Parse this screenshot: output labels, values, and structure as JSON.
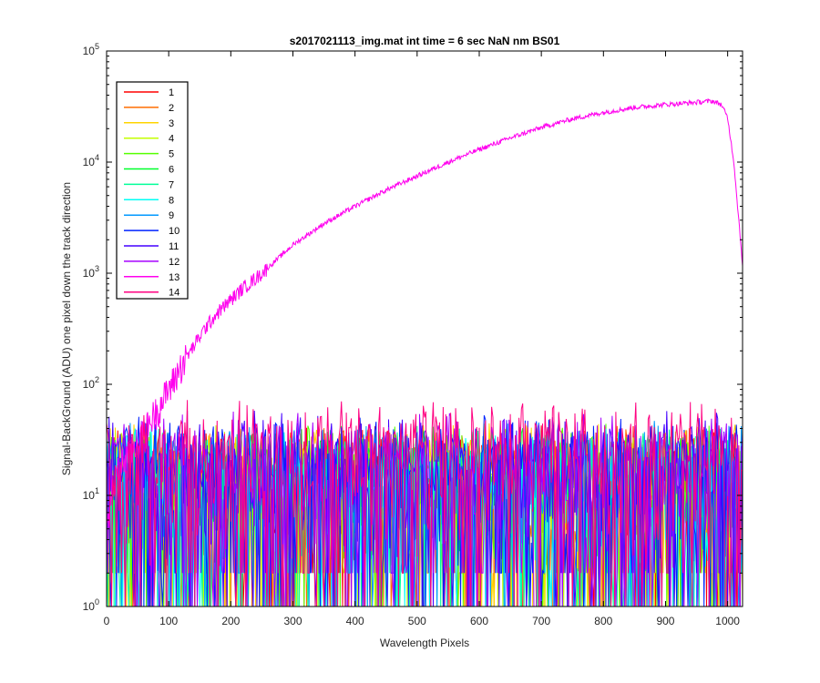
{
  "chart_data": {
    "type": "line",
    "title": "s2017021113_img.mat int time = 6 sec  NaN nm BS01",
    "xlabel": "Wavelength Pixels",
    "ylabel": "Signal-BackGround (ADU) one pixel down the track direction",
    "xlim": [
      0,
      1024
    ],
    "ylim": [
      1,
      100000
    ],
    "yscale": "log",
    "grid": false,
    "legend_position": "top-left",
    "xticks": [
      0,
      100,
      200,
      300,
      400,
      500,
      600,
      700,
      800,
      900,
      1000
    ],
    "xtick_labels": [
      "0",
      "100",
      "200",
      "300",
      "400",
      "500",
      "600",
      "700",
      "800",
      "900",
      "1000"
    ],
    "yticks": [
      1,
      10,
      100,
      1000,
      10000,
      100000
    ],
    "ytick_labels": [
      {
        "base": "10",
        "exp": "0"
      },
      {
        "base": "10",
        "exp": "1"
      },
      {
        "base": "10",
        "exp": "2"
      },
      {
        "base": "10",
        "exp": "3"
      },
      {
        "base": "10",
        "exp": "4"
      },
      {
        "base": "10",
        "exp": "5"
      }
    ],
    "series": [
      {
        "name": "1",
        "color": "#ff0000",
        "noise_max": 45
      },
      {
        "name": "2",
        "color": "#ff6e00",
        "noise_max": 45
      },
      {
        "name": "3",
        "color": "#ffd400",
        "noise_max": 48
      },
      {
        "name": "4",
        "color": "#c4ff00",
        "noise_max": 45
      },
      {
        "name": "5",
        "color": "#55ff00",
        "noise_max": 45
      },
      {
        "name": "6",
        "color": "#00ff2b",
        "noise_max": 45
      },
      {
        "name": "7",
        "color": "#00ff99",
        "noise_max": 45
      },
      {
        "name": "8",
        "color": "#00fff5",
        "noise_max": 45
      },
      {
        "name": "9",
        "color": "#0099ff",
        "noise_max": 50
      },
      {
        "name": "10",
        "color": "#0022ff",
        "noise_max": 55
      },
      {
        "name": "11",
        "color": "#4400ff",
        "noise_max": 60
      },
      {
        "name": "12",
        "color": "#a600ff",
        "noise_max": 60
      },
      {
        "name": "13",
        "color": "#ff00ee",
        "signal_points": [
          [
            0,
            5
          ],
          [
            10,
            12
          ],
          [
            20,
            18
          ],
          [
            30,
            22
          ],
          [
            40,
            25
          ],
          [
            50,
            30
          ],
          [
            60,
            36
          ],
          [
            70,
            48
          ],
          [
            80,
            58
          ],
          [
            90,
            72
          ],
          [
            100,
            92
          ],
          [
            110,
            115
          ],
          [
            120,
            150
          ],
          [
            140,
            220
          ],
          [
            160,
            330
          ],
          [
            180,
            450
          ],
          [
            200,
            580
          ],
          [
            220,
            740
          ],
          [
            250,
            1000
          ],
          [
            300,
            1800
          ],
          [
            350,
            2800
          ],
          [
            400,
            4000
          ],
          [
            450,
            5600
          ],
          [
            500,
            7500
          ],
          [
            550,
            10000
          ],
          [
            600,
            13000
          ],
          [
            650,
            16500
          ],
          [
            700,
            20500
          ],
          [
            750,
            24500
          ],
          [
            800,
            28000
          ],
          [
            850,
            31000
          ],
          [
            900,
            33000
          ],
          [
            950,
            34500
          ],
          [
            975,
            35500
          ],
          [
            990,
            33000
          ],
          [
            1000,
            25000
          ],
          [
            1010,
            10000
          ],
          [
            1018,
            3000
          ],
          [
            1024,
            1200
          ]
        ]
      },
      {
        "name": "14",
        "color": "#ff0080",
        "noise_max": 75
      }
    ]
  }
}
